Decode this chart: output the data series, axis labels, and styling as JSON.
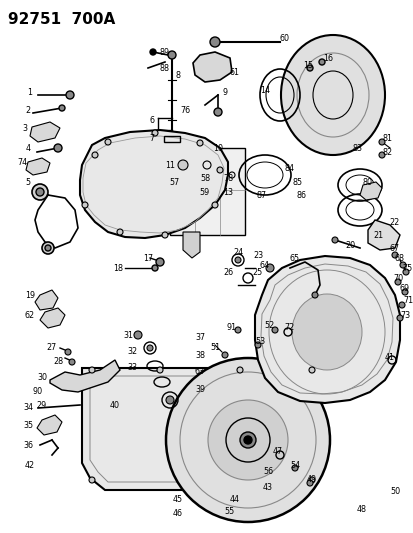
{
  "title": "92751  700A",
  "bg_color": "#ffffff",
  "fig_width": 4.14,
  "fig_height": 5.33,
  "dpi": 100
}
